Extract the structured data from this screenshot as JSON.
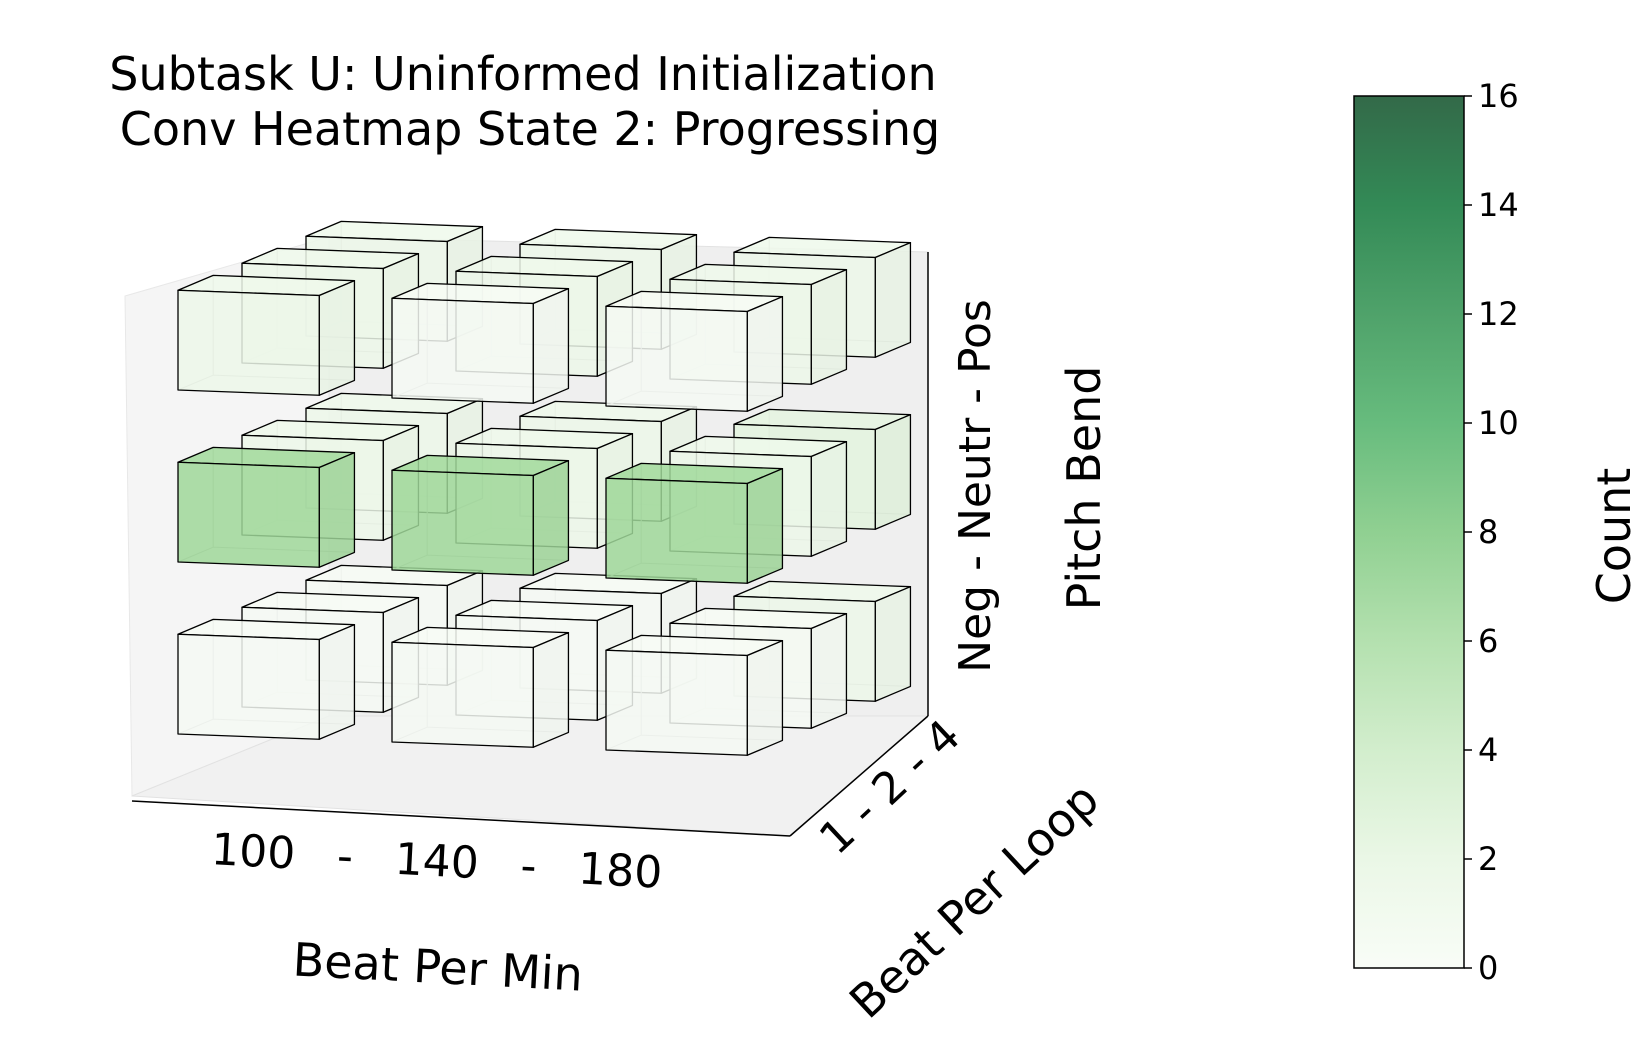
{
  "chart_data": {
    "type": "heatmap",
    "title_lines": [
      "Subtask U: Uninformed Initialization",
      "Conv Heatmap State 2: Progressing"
    ],
    "xlabel": "Beat Per Min",
    "ylabel": "Beat Per Loop",
    "zlabel": "Pitch Bend",
    "x_tick_text": "100   -   140   -   180",
    "y_tick_text": "1 - 2 - 4",
    "z_tick_text": "Neg - Neutr - Pos",
    "x_categories": [
      "100",
      "140",
      "180"
    ],
    "y_categories": [
      "1",
      "2",
      "4"
    ],
    "z_categories": [
      "Neg",
      "Neutr",
      "Pos"
    ],
    "cells": [
      {
        "bpm": "100",
        "loop": "1",
        "bend": "Neg",
        "count": 0
      },
      {
        "bpm": "100",
        "loop": "2",
        "bend": "Neg",
        "count": 0
      },
      {
        "bpm": "100",
        "loop": "4",
        "bend": "Neg",
        "count": 0
      },
      {
        "bpm": "140",
        "loop": "1",
        "bend": "Neg",
        "count": 0
      },
      {
        "bpm": "140",
        "loop": "2",
        "bend": "Neg",
        "count": 0
      },
      {
        "bpm": "140",
        "loop": "4",
        "bend": "Neg",
        "count": 0
      },
      {
        "bpm": "180",
        "loop": "1",
        "bend": "Neg",
        "count": 0
      },
      {
        "bpm": "180",
        "loop": "2",
        "bend": "Neg",
        "count": 0
      },
      {
        "bpm": "180",
        "loop": "4",
        "bend": "Neg",
        "count": 1
      },
      {
        "bpm": "100",
        "loop": "1",
        "bend": "Neutr",
        "count": 6
      },
      {
        "bpm": "100",
        "loop": "2",
        "bend": "Neutr",
        "count": 1
      },
      {
        "bpm": "100",
        "loop": "4",
        "bend": "Neutr",
        "count": 1
      },
      {
        "bpm": "140",
        "loop": "1",
        "bend": "Neutr",
        "count": 6
      },
      {
        "bpm": "140",
        "loop": "2",
        "bend": "Neutr",
        "count": 1
      },
      {
        "bpm": "140",
        "loop": "4",
        "bend": "Neutr",
        "count": 1
      },
      {
        "bpm": "180",
        "loop": "1",
        "bend": "Neutr",
        "count": 6
      },
      {
        "bpm": "180",
        "loop": "2",
        "bend": "Neutr",
        "count": 1
      },
      {
        "bpm": "180",
        "loop": "4",
        "bend": "Neutr",
        "count": 2
      },
      {
        "bpm": "100",
        "loop": "1",
        "bend": "Pos",
        "count": 1
      },
      {
        "bpm": "100",
        "loop": "2",
        "bend": "Pos",
        "count": 1
      },
      {
        "bpm": "100",
        "loop": "4",
        "bend": "Pos",
        "count": 1
      },
      {
        "bpm": "140",
        "loop": "1",
        "bend": "Pos",
        "count": 0
      },
      {
        "bpm": "140",
        "loop": "2",
        "bend": "Pos",
        "count": 1
      },
      {
        "bpm": "140",
        "loop": "4",
        "bend": "Pos",
        "count": 1
      },
      {
        "bpm": "180",
        "loop": "1",
        "bend": "Pos",
        "count": 0
      },
      {
        "bpm": "180",
        "loop": "2",
        "bend": "Pos",
        "count": 1
      },
      {
        "bpm": "180",
        "loop": "4",
        "bend": "Pos",
        "count": 1
      }
    ],
    "colorbar": {
      "label": "Count",
      "min": 0,
      "max": 16,
      "ticks": [
        "0",
        "2",
        "4",
        "6",
        "8",
        "10",
        "12",
        "14",
        "16"
      ],
      "colormap": "Greens",
      "color_low": "#f7fcf5",
      "color_high": "#00441b"
    },
    "grid": false,
    "legend": "none"
  }
}
